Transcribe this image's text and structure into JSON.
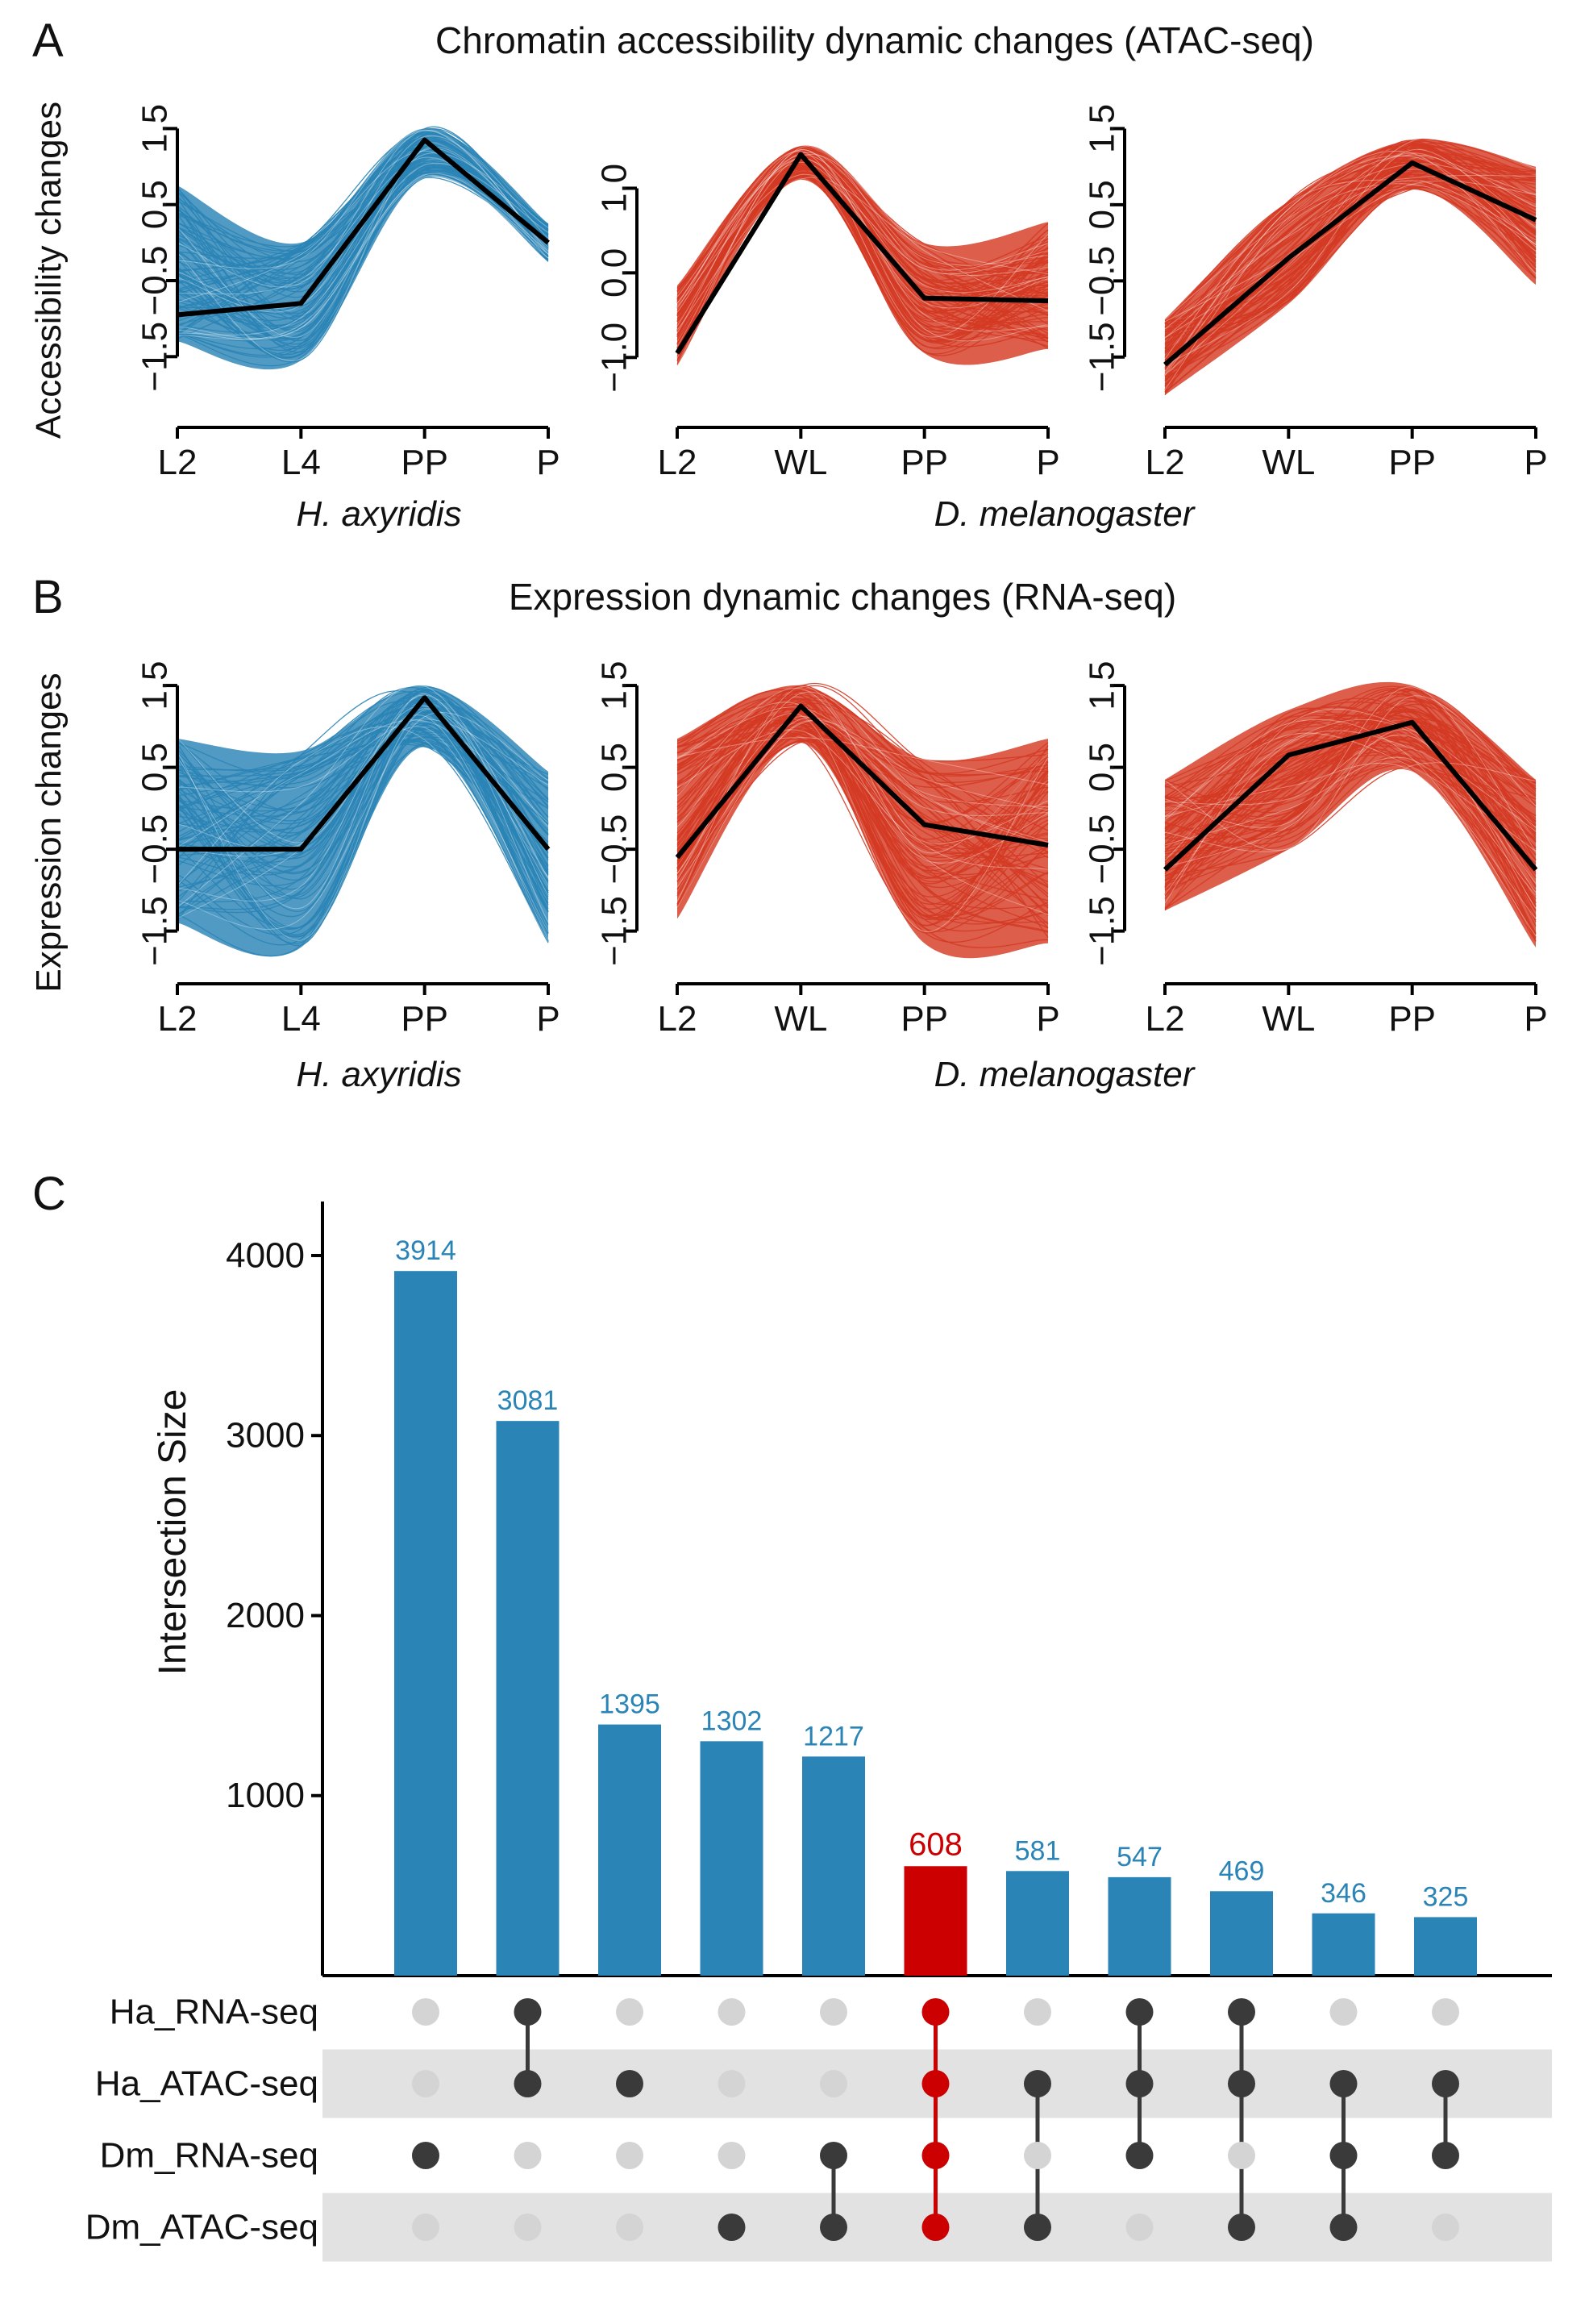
{
  "panels": {
    "a_letter": "A",
    "b_letter": "B",
    "c_letter": "C",
    "a_title": "Chromatin accessibility dynamic changes (ATAC-seq)",
    "b_title": "Expression dynamic changes (RNA-seq)"
  },
  "colors": {
    "blue": "#2a84b6",
    "red": "#d43a23",
    "highlight": "#cc0000",
    "black": "#000000",
    "dot_on": "#3a3a3a",
    "dot_off": "#d4d4d4",
    "stripe": "#e2e2e2"
  },
  "chart_data": [
    {
      "id": "A1",
      "type": "line",
      "ylabel": "Accessibility changes",
      "species": "H. axyridis",
      "color": "blue",
      "x": [
        "L2",
        "L4",
        "PP",
        "P"
      ],
      "ylim": [
        -1.9,
        1.6
      ],
      "yticks": [
        "−1.5",
        "−0.5",
        "0.5",
        "1.5"
      ],
      "ytick_values": [
        -1.5,
        -0.5,
        0.5,
        1.5
      ],
      "mean": [
        -0.95,
        -0.8,
        1.35,
        0.0
      ],
      "band_upper": [
        0.75,
        0.0,
        1.5,
        0.25
      ],
      "band_lower": [
        -1.3,
        -1.55,
        0.85,
        -0.25
      ],
      "ncurves": 80
    },
    {
      "id": "A2",
      "type": "line",
      "ylabel": "",
      "species": "",
      "color": "red",
      "x": [
        "L2",
        "WL",
        "PP",
        "P"
      ],
      "ylim": [
        -1.35,
        1.7
      ],
      "yticks": [
        "−1.0",
        "0.0",
        "1.0"
      ],
      "ytick_values": [
        -1.0,
        0.0,
        1.0
      ],
      "mean": [
        -0.95,
        1.4,
        -0.3,
        -0.33
      ],
      "band_upper": [
        -0.15,
        1.5,
        0.35,
        0.6
      ],
      "band_lower": [
        -1.1,
        1.1,
        -0.95,
        -0.9
      ],
      "ncurves": 80
    },
    {
      "id": "A3",
      "type": "line",
      "ylabel": "",
      "species": "D. melanogaster",
      "color": "red",
      "x": [
        "L2",
        "WL",
        "PP",
        "P"
      ],
      "ylim": [
        -2.0,
        1.6
      ],
      "yticks": [
        "−1.5",
        "−0.5",
        "0.5",
        "1.5"
      ],
      "ytick_values": [
        -1.5,
        -0.5,
        0.5,
        1.5
      ],
      "mean": [
        -1.6,
        -0.2,
        1.05,
        0.3
      ],
      "band_upper": [
        -1.0,
        0.55,
        1.35,
        1.0
      ],
      "band_lower": [
        -2.0,
        -0.8,
        0.7,
        -0.55
      ],
      "ncurves": 80
    },
    {
      "id": "B1",
      "type": "line",
      "ylabel": "Expression changes",
      "species": "H. axyridis",
      "color": "blue",
      "x": [
        "L2",
        "L4",
        "PP",
        "P"
      ],
      "ylim": [
        -1.75,
        1.55
      ],
      "yticks": [
        "−1.5",
        "−0.5",
        "0.5",
        "1.5"
      ],
      "ytick_values": [
        -1.5,
        -0.5,
        0.5,
        1.5
      ],
      "mean": [
        -0.5,
        -0.5,
        1.35,
        -0.5
      ],
      "band_upper": [
        0.85,
        0.7,
        1.5,
        0.45
      ],
      "band_lower": [
        -1.4,
        -1.7,
        0.75,
        -1.65
      ],
      "ncurves": 80
    },
    {
      "id": "B2",
      "type": "line",
      "ylabel": "",
      "species": "",
      "color": "red",
      "x": [
        "L2",
        "WL",
        "PP",
        "P"
      ],
      "ylim": [
        -1.75,
        1.55
      ],
      "yticks": [
        "−1.5",
        "−0.5",
        "0.5",
        "1.5"
      ],
      "ytick_values": [
        -1.5,
        -0.5,
        0.5,
        1.5
      ],
      "mean": [
        -0.6,
        1.25,
        -0.2,
        -0.45
      ],
      "band_upper": [
        0.85,
        1.5,
        0.6,
        0.85
      ],
      "band_lower": [
        -1.35,
        0.8,
        -1.65,
        -1.65
      ],
      "ncurves": 80
    },
    {
      "id": "B3",
      "type": "line",
      "ylabel": "",
      "species": "D. melanogaster",
      "color": "red",
      "x": [
        "L2",
        "WL",
        "PP",
        "P"
      ],
      "ylim": [
        -1.75,
        1.55
      ],
      "yticks": [
        "−1.5",
        "−0.5",
        "0.5",
        "1.5"
      ],
      "ytick_values": [
        -1.5,
        -0.5,
        0.5,
        1.5
      ],
      "mean": [
        -0.75,
        0.65,
        1.05,
        -0.75
      ],
      "band_upper": [
        0.35,
        1.2,
        1.5,
        0.35
      ],
      "band_lower": [
        -1.25,
        -0.5,
        0.45,
        -1.7
      ],
      "ncurves": 80
    },
    {
      "id": "C",
      "type": "bar",
      "title": "",
      "ylabel": "Intersection Size",
      "xlabel": "",
      "ylim": [
        0,
        4300
      ],
      "yticks": [
        1000,
        2000,
        3000,
        4000
      ],
      "values": [
        3914,
        3081,
        1395,
        1302,
        1217,
        608,
        581,
        547,
        469,
        346,
        325
      ],
      "highlight_index": 5,
      "sets": [
        "Ha_RNA-seq",
        "Ha_ATAC-seq",
        "Dm_RNA-seq",
        "Dm_ATAC-seq"
      ],
      "membership": [
        [
          2
        ],
        [
          0,
          1
        ],
        [
          1
        ],
        [
          3
        ],
        [
          2,
          3
        ],
        [
          0,
          1,
          2,
          3
        ],
        [
          1,
          3
        ],
        [
          0,
          1,
          2
        ],
        [
          0,
          1,
          3
        ],
        [
          1,
          2,
          3
        ],
        [
          1,
          2
        ]
      ]
    }
  ]
}
